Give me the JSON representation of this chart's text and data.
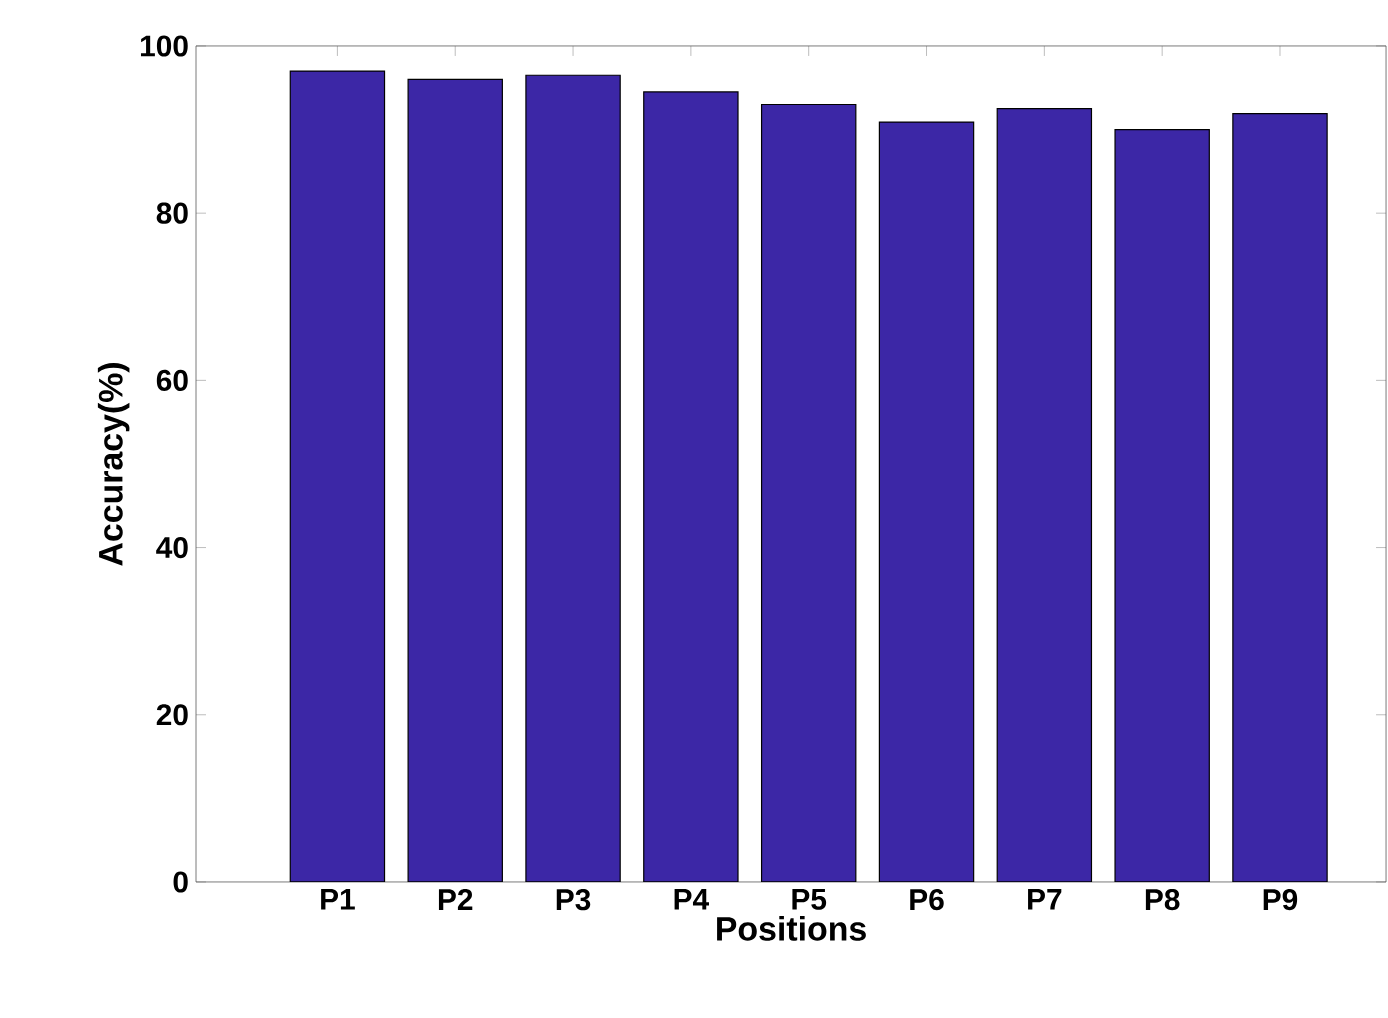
{
  "chart_data": {
    "type": "bar",
    "xlabel": "Positions",
    "ylabel": "Accuracy(%)",
    "categories": [
      "P1",
      "P2",
      "P3",
      "P4",
      "P5",
      "P6",
      "P7",
      "P8",
      "P9"
    ],
    "values": [
      97.0,
      96.0,
      96.5,
      94.5,
      93.0,
      90.9,
      92.5,
      90.0,
      91.9
    ],
    "color": "#3c27a6",
    "ylim": [
      0,
      100
    ],
    "yticks": [
      0,
      20,
      40,
      60,
      80,
      100
    ]
  }
}
